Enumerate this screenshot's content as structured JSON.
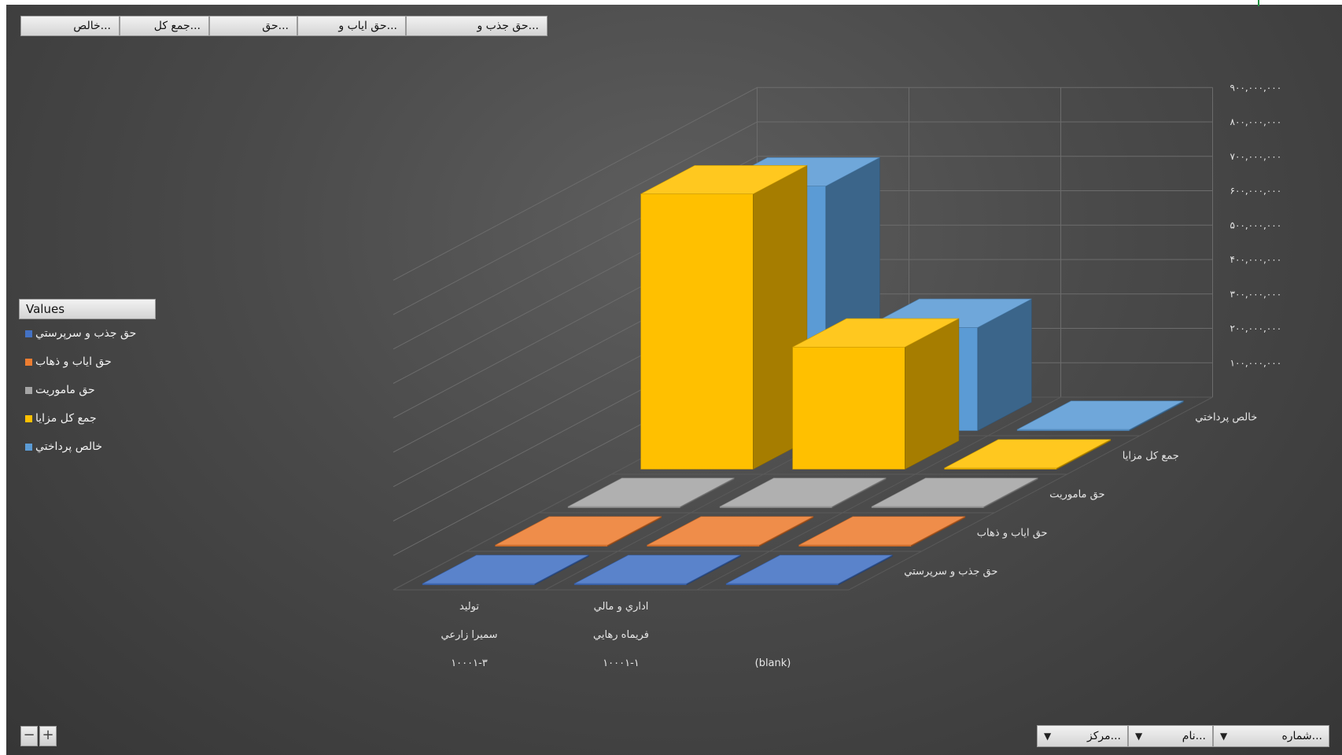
{
  "value_field_buttons": [
    {
      "label": "حق جذب و..."
    },
    {
      "label": "حق اياب و..."
    },
    {
      "label": "حق..."
    },
    {
      "label": "جمع کل..."
    },
    {
      "label": "خالص..."
    }
  ],
  "legend": {
    "title": "Values",
    "items": [
      {
        "label": "حق جذب و سرپرستي",
        "color": "#4472c4"
      },
      {
        "label": "حق اياب و ذهاب",
        "color": "#ed7d31"
      },
      {
        "label": "حق ماموريت",
        "color": "#a5a5a5"
      },
      {
        "label": "جمع کل مزايا",
        "color": "#ffc000"
      },
      {
        "label": "خالص پرداختي",
        "color": "#5b9bd5"
      }
    ]
  },
  "axis_field_buttons": [
    {
      "label": "شماره...",
      "arrow": "▼"
    },
    {
      "label": "نام...",
      "arrow": "▼"
    },
    {
      "label": "مرکز...",
      "arrow": "▼"
    }
  ],
  "zoom": {
    "minus": "−",
    "plus": "+"
  },
  "chart_data": {
    "type": "bar",
    "subtype": "3d-column",
    "categories": [
      {
        "lines": [
          "توليد",
          "سميرا زارعي",
          "۱۰۰۰۱-۳"
        ]
      },
      {
        "lines": [
          "اداري و مالي",
          "فريماه رهايي",
          "۱۰۰۰۱-۱"
        ]
      },
      {
        "lines": [
          "(blank)"
        ]
      }
    ],
    "series": [
      {
        "name": "حق جذب و سرپرستي",
        "color": "#4472c4",
        "values": [
          0,
          0,
          0
        ]
      },
      {
        "name": "حق اياب و ذهاب",
        "color": "#ed7d31",
        "values": [
          0,
          0,
          0
        ]
      },
      {
        "name": "حق ماموريت",
        "color": "#a5a5a5",
        "values": [
          0,
          0,
          0
        ]
      },
      {
        "name": "جمع کل مزايا",
        "color": "#ffc000",
        "values": [
          800000000,
          355000000,
          0
        ]
      },
      {
        "name": "خالص پرداختي",
        "color": "#5b9bd5",
        "values": [
          711000000,
          300000000,
          0
        ]
      }
    ],
    "z_ticks": [
      "۱۰۰,۰۰۰,۰۰۰",
      "۲۰۰,۰۰۰,۰۰۰",
      "۳۰۰,۰۰۰,۰۰۰",
      "۴۰۰,۰۰۰,۰۰۰",
      "۵۰۰,۰۰۰,۰۰۰",
      "۶۰۰,۰۰۰,۰۰۰",
      "۷۰۰,۰۰۰,۰۰۰",
      "۸۰۰,۰۰۰,۰۰۰",
      "۹۰۰,۰۰۰,۰۰۰"
    ],
    "z_range": [
      0,
      900000000
    ],
    "legend_position": "left",
    "grid": true
  }
}
